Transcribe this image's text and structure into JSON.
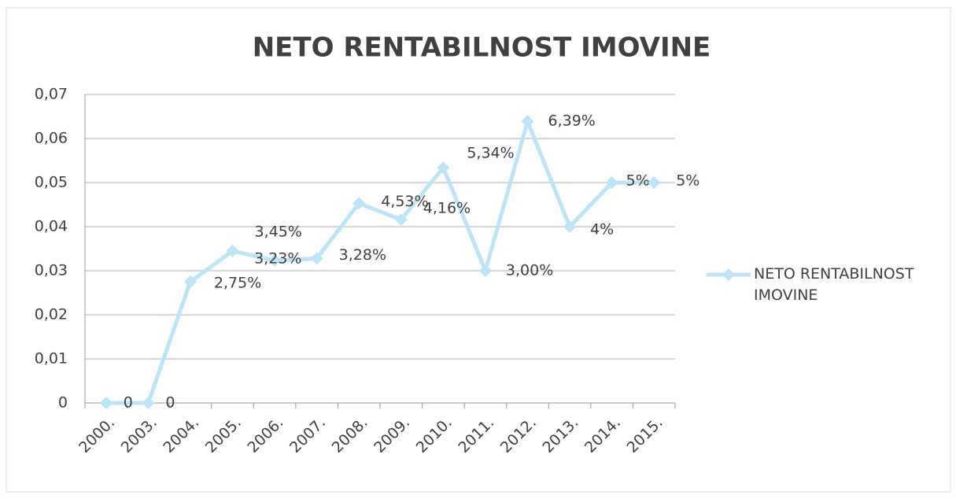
{
  "chart_data": {
    "type": "line",
    "title": "NETO RENTABILNOST IMOVINE",
    "categories": [
      "2000.",
      "2003.",
      "2004.",
      "2005.",
      "2006.",
      "2007.",
      "2008.",
      "2009.",
      "2010.",
      "2011.",
      "2012.",
      "2013.",
      "2014.",
      "2015."
    ],
    "series": [
      {
        "name": "NETO RENTABILNOST IMOVINE",
        "color": "#bde5f7",
        "values": [
          0,
          0,
          0.0275,
          0.0345,
          0.0323,
          0.0328,
          0.0453,
          0.0416,
          0.0534,
          0.03,
          0.0639,
          0.04,
          0.05,
          0.05
        ],
        "value_labels": [
          "0",
          "0",
          "2,75%",
          "3,45%",
          "3,23%",
          "3,28%",
          "4,53%",
          "4,16%",
          "5,34%",
          "3,00%",
          "6,39%",
          "4%",
          "5%",
          "5%"
        ]
      }
    ],
    "ylim": [
      0,
      0.07
    ],
    "yticks": [
      0,
      {
        "value": 0.01,
        "label": "0,01"
      },
      {
        "value": 0.02,
        "label": "0,02"
      },
      {
        "value": 0.03,
        "label": "0,03"
      },
      {
        "value": 0.04,
        "label": "0,04"
      },
      {
        "value": 0.05,
        "label": "0,05"
      },
      {
        "value": 0.06,
        "label": "0,06"
      },
      {
        "value": 0.07,
        "label": "0,07"
      }
    ],
    "grid": true,
    "legend": "right"
  }
}
